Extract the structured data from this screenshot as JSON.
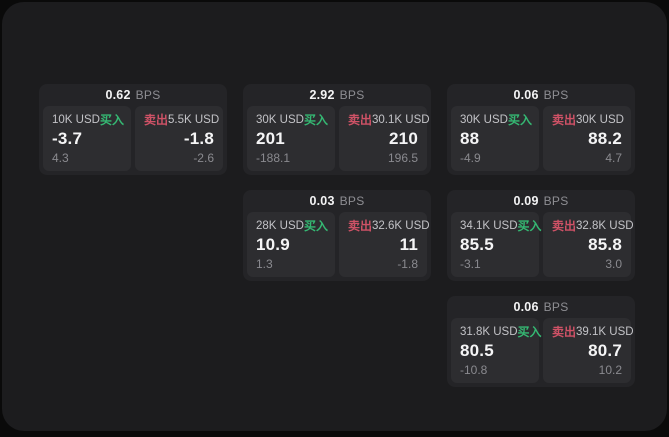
{
  "labels": {
    "bps_unit": "BPS",
    "buy": "买入",
    "sell": "卖出"
  },
  "colors": {
    "outer_bg": "#0a0a0a",
    "panel_bg": "#1c1c1e",
    "card_bg": "#242427",
    "tile_bg": "#2d2d30",
    "buy_green": "#35b873",
    "sell_red": "#cf5266",
    "price_white": "#f5f5f6",
    "muted_gray": "#8a8a8f"
  },
  "cards": [
    {
      "bps": "0.62",
      "buy": {
        "amount": "10K USD",
        "price": "-3.7",
        "delta": "4.3"
      },
      "sell": {
        "amount": "5.5K USD",
        "price": "-1.8",
        "delta": "-2.6"
      }
    },
    {
      "bps": "2.92",
      "buy": {
        "amount": "30K USD",
        "price": "201",
        "delta": "-188.1"
      },
      "sell": {
        "amount": "30.1K USD",
        "price": "210",
        "delta": "196.5"
      }
    },
    {
      "bps": "0.06",
      "buy": {
        "amount": "30K USD",
        "price": "88",
        "delta": "-4.9"
      },
      "sell": {
        "amount": "30K USD",
        "price": "88.2",
        "delta": "4.7"
      }
    },
    {
      "bps": "0.03",
      "buy": {
        "amount": "28K USD",
        "price": "10.9",
        "delta": "1.3"
      },
      "sell": {
        "amount": "32.6K USD",
        "price": "11",
        "delta": "-1.8"
      }
    },
    {
      "bps": "0.09",
      "buy": {
        "amount": "34.1K USD",
        "price": "85.5",
        "delta": "-3.1"
      },
      "sell": {
        "amount": "32.8K USD",
        "price": "85.8",
        "delta": "3.0"
      }
    },
    {
      "bps": "0.06",
      "buy": {
        "amount": "31.8K USD",
        "price": "80.5",
        "delta": "-10.8"
      },
      "sell": {
        "amount": "39.1K USD",
        "price": "80.7",
        "delta": "10.2"
      }
    }
  ]
}
